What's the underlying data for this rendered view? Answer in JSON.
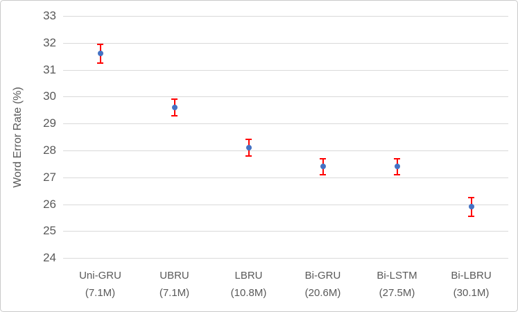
{
  "chart_data": {
    "type": "scatter",
    "title": "",
    "xlabel": "",
    "ylabel": "Word Error Rate (%)",
    "ylim": [
      24,
      33
    ],
    "y_tick_step": 1,
    "y_ticks": [
      33,
      32,
      31,
      30,
      29,
      28,
      27,
      26,
      25,
      24
    ],
    "grid": true,
    "legend": "none",
    "marker_color": "#4472C4",
    "error_bar_color": "#FF0000",
    "gridline_color": "#d9d9d9",
    "text_color": "#595959",
    "points": [
      {
        "label": "Uni-GRU",
        "params": "(7.1M)",
        "wer": 31.6,
        "error": 0.35
      },
      {
        "label": "UBRU",
        "params": "(7.1M)",
        "wer": 29.6,
        "error": 0.3
      },
      {
        "label": "LBRU",
        "params": "(10.8M)",
        "wer": 28.1,
        "error": 0.3
      },
      {
        "label": "Bi-GRU",
        "params": "(20.6M)",
        "wer": 27.4,
        "error": 0.3
      },
      {
        "label": "Bi-LSTM",
        "params": "(27.5M)",
        "wer": 27.4,
        "error": 0.3
      },
      {
        "label": "Bi-LBRU",
        "params": "(30.1M)",
        "wer": 25.9,
        "error": 0.35
      }
    ]
  }
}
